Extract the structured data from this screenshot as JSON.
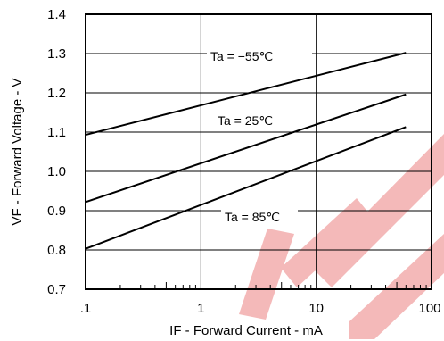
{
  "chart_data": {
    "type": "line",
    "title": "",
    "xlabel": "IF - Forward Current - mA",
    "ylabel": "VF - Forward Voltage - V",
    "x_scale": "log",
    "xlim": [
      0.1,
      100
    ],
    "ylim": [
      0.7,
      1.4
    ],
    "x_ticks": [
      0.1,
      1,
      10,
      100
    ],
    "x_tick_labels": [
      ".1",
      "1",
      "10",
      "100"
    ],
    "y_ticks": [
      0.7,
      0.8,
      0.9,
      1.0,
      1.1,
      1.2,
      1.3,
      1.4
    ],
    "y_tick_labels": [
      "0.7",
      "0.8",
      "0.9",
      "1.0",
      "1.1",
      "1.2",
      "1.3",
      "1.4"
    ],
    "grid": true,
    "series": [
      {
        "name": "Ta = −55℃",
        "x": [
          0.1,
          60
        ],
        "y": [
          1.093,
          1.302
        ],
        "color": "#000000"
      },
      {
        "name": "Ta = 25℃",
        "x": [
          0.1,
          60
        ],
        "y": [
          0.922,
          1.196
        ],
        "color": "#000000"
      },
      {
        "name": "Ta = 85℃",
        "x": [
          0.1,
          60
        ],
        "y": [
          0.803,
          1.113
        ],
        "color": "#000000"
      }
    ],
    "annotations": [
      "Ta = −55℃",
      "Ta = 25℃",
      "Ta = 85℃"
    ]
  }
}
